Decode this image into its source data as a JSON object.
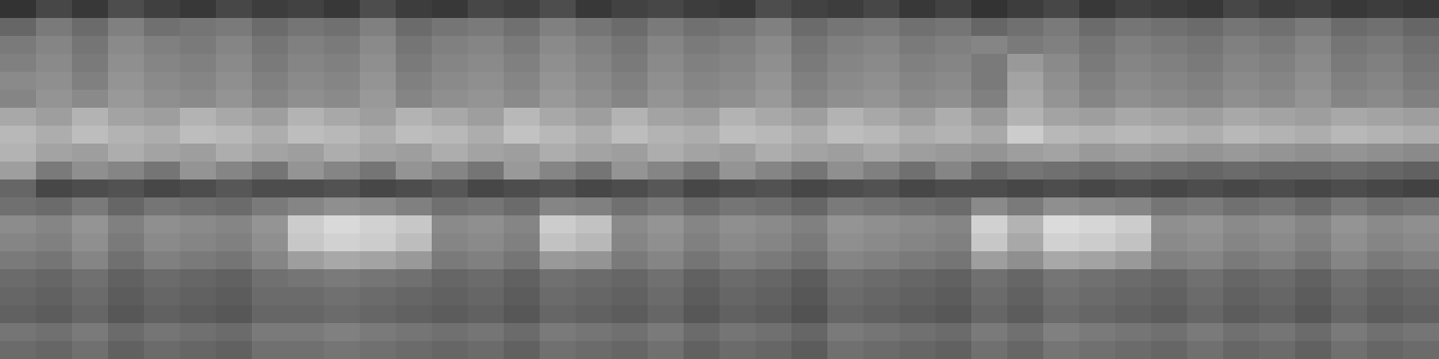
{
  "chart_data": {
    "type": "heatmap",
    "tick_labels": false,
    "zlim": [
      0,
      100
    ],
    "cells": [
      [
        20,
        28,
        22,
        30,
        25,
        22,
        28,
        24,
        26,
        22,
        30,
        24,
        22,
        28,
        25,
        30,
        22,
        26,
        28,
        24,
        22,
        30,
        26,
        24,
        28,
        22,
        26,
        20,
        24,
        28,
        22,
        26,
        24,
        22,
        28,
        24,
        26,
        22,
        24,
        22
      ],
      [
        40,
        48,
        42,
        50,
        44,
        46,
        48,
        42,
        46,
        44,
        50,
        42,
        46,
        48,
        44,
        50,
        46,
        42,
        48,
        44,
        46,
        50,
        42,
        46,
        48,
        44,
        46,
        40,
        44,
        48,
        42,
        46,
        44,
        42,
        46,
        44,
        48,
        42,
        44,
        40
      ],
      [
        48,
        52,
        46,
        54,
        50,
        48,
        52,
        46,
        50,
        48,
        54,
        46,
        50,
        52,
        48,
        54,
        50,
        46,
        52,
        48,
        50,
        54,
        46,
        50,
        52,
        48,
        50,
        52,
        48,
        50,
        46,
        50,
        48,
        46,
        50,
        48,
        52,
        46,
        48,
        44
      ],
      [
        50,
        54,
        48,
        56,
        52,
        50,
        54,
        48,
        52,
        50,
        56,
        48,
        52,
        54,
        50,
        56,
        52,
        48,
        54,
        50,
        52,
        56,
        48,
        52,
        54,
        50,
        52,
        48,
        60,
        54,
        48,
        52,
        50,
        48,
        52,
        50,
        54,
        48,
        50,
        46
      ],
      [
        54,
        56,
        50,
        58,
        54,
        52,
        56,
        50,
        54,
        52,
        58,
        50,
        54,
        56,
        52,
        58,
        54,
        50,
        56,
        52,
        54,
        58,
        50,
        54,
        56,
        52,
        54,
        48,
        64,
        56,
        50,
        54,
        52,
        50,
        54,
        52,
        56,
        50,
        52,
        48
      ],
      [
        52,
        58,
        54,
        60,
        56,
        54,
        58,
        52,
        56,
        54,
        60,
        52,
        56,
        58,
        54,
        60,
        56,
        52,
        58,
        54,
        56,
        60,
        52,
        56,
        58,
        54,
        56,
        50,
        66,
        58,
        52,
        56,
        54,
        52,
        56,
        54,
        58,
        52,
        54,
        50
      ],
      [
        66,
        62,
        70,
        64,
        62,
        70,
        66,
        62,
        70,
        66,
        62,
        70,
        66,
        62,
        72,
        66,
        62,
        70,
        64,
        62,
        70,
        66,
        62,
        70,
        66,
        62,
        68,
        60,
        70,
        64,
        62,
        66,
        64,
        62,
        66,
        64,
        62,
        66,
        64,
        62
      ],
      [
        72,
        68,
        74,
        70,
        68,
        74,
        72,
        68,
        74,
        72,
        68,
        74,
        72,
        68,
        76,
        72,
        68,
        74,
        70,
        68,
        74,
        72,
        68,
        74,
        72,
        68,
        70,
        66,
        80,
        72,
        70,
        72,
        70,
        68,
        72,
        70,
        68,
        72,
        70,
        68
      ],
      [
        70,
        64,
        62,
        68,
        64,
        62,
        68,
        64,
        62,
        68,
        64,
        62,
        68,
        64,
        62,
        68,
        64,
        62,
        68,
        64,
        62,
        68,
        64,
        62,
        66,
        62,
        60,
        58,
        62,
        64,
        60,
        62,
        60,
        58,
        60,
        58,
        56,
        58,
        56,
        54
      ],
      [
        62,
        48,
        56,
        52,
        46,
        58,
        52,
        46,
        58,
        52,
        46,
        58,
        52,
        46,
        60,
        52,
        46,
        58,
        52,
        46,
        58,
        52,
        46,
        56,
        50,
        44,
        52,
        42,
        46,
        44,
        42,
        44,
        42,
        40,
        42,
        40,
        40,
        42,
        40,
        38
      ],
      [
        40,
        28,
        30,
        32,
        28,
        30,
        34,
        30,
        30,
        32,
        28,
        30,
        34,
        28,
        30,
        32,
        28,
        30,
        34,
        28,
        30,
        32,
        28,
        30,
        32,
        28,
        30,
        30,
        28,
        30,
        28,
        30,
        28,
        30,
        28,
        30,
        28,
        30,
        28,
        26
      ],
      [
        44,
        42,
        48,
        40,
        46,
        44,
        42,
        48,
        52,
        56,
        54,
        50,
        44,
        46,
        42,
        52,
        50,
        44,
        48,
        42,
        46,
        44,
        40,
        48,
        46,
        44,
        42,
        54,
        48,
        56,
        54,
        52,
        46,
        48,
        44,
        46,
        42,
        48,
        44,
        46
      ],
      [
        55,
        52,
        58,
        50,
        56,
        54,
        52,
        58,
        80,
        85,
        82,
        78,
        54,
        56,
        52,
        80,
        76,
        54,
        58,
        52,
        56,
        54,
        50,
        58,
        56,
        54,
        52,
        82,
        70,
        86,
        84,
        80,
        56,
        58,
        54,
        56,
        52,
        58,
        54,
        56
      ],
      [
        52,
        50,
        56,
        48,
        54,
        52,
        50,
        56,
        78,
        82,
        80,
        74,
        52,
        54,
        50,
        76,
        72,
        52,
        56,
        50,
        54,
        52,
        48,
        56,
        54,
        52,
        50,
        78,
        66,
        82,
        80,
        76,
        54,
        56,
        52,
        54,
        50,
        56,
        52,
        54
      ],
      [
        48,
        46,
        52,
        44,
        50,
        48,
        46,
        52,
        62,
        66,
        64,
        60,
        48,
        50,
        46,
        60,
        58,
        48,
        52,
        46,
        50,
        48,
        44,
        52,
        50,
        48,
        46,
        62,
        56,
        66,
        64,
        60,
        50,
        52,
        48,
        50,
        46,
        52,
        48,
        50
      ],
      [
        42,
        40,
        44,
        38,
        42,
        40,
        38,
        44,
        46,
        48,
        46,
        44,
        40,
        42,
        38,
        44,
        42,
        40,
        44,
        38,
        42,
        40,
        36,
        44,
        42,
        40,
        38,
        44,
        40,
        46,
        44,
        42,
        40,
        44,
        40,
        42,
        38,
        44,
        40,
        42
      ],
      [
        40,
        38,
        42,
        36,
        40,
        38,
        36,
        42,
        42,
        44,
        42,
        40,
        38,
        40,
        36,
        42,
        40,
        38,
        42,
        36,
        40,
        38,
        34,
        42,
        40,
        38,
        36,
        42,
        38,
        44,
        42,
        40,
        38,
        42,
        38,
        40,
        36,
        42,
        38,
        40
      ],
      [
        38,
        36,
        40,
        34,
        38,
        36,
        34,
        40,
        40,
        42,
        40,
        38,
        36,
        38,
        34,
        40,
        38,
        36,
        40,
        34,
        38,
        36,
        32,
        40,
        38,
        36,
        34,
        40,
        36,
        42,
        40,
        38,
        36,
        40,
        36,
        38,
        34,
        40,
        36,
        38
      ],
      [
        46,
        44,
        48,
        42,
        46,
        44,
        42,
        48,
        48,
        50,
        48,
        46,
        44,
        46,
        42,
        48,
        46,
        44,
        48,
        42,
        46,
        44,
        40,
        48,
        46,
        44,
        42,
        48,
        44,
        50,
        48,
        46,
        44,
        48,
        44,
        46,
        42,
        48,
        44,
        46
      ],
      [
        42,
        40,
        44,
        38,
        42,
        40,
        38,
        44,
        44,
        46,
        44,
        42,
        40,
        42,
        38,
        44,
        42,
        40,
        44,
        38,
        42,
        40,
        36,
        44,
        42,
        40,
        38,
        44,
        40,
        46,
        44,
        42,
        40,
        44,
        40,
        42,
        38,
        44,
        40,
        42
      ]
    ]
  }
}
